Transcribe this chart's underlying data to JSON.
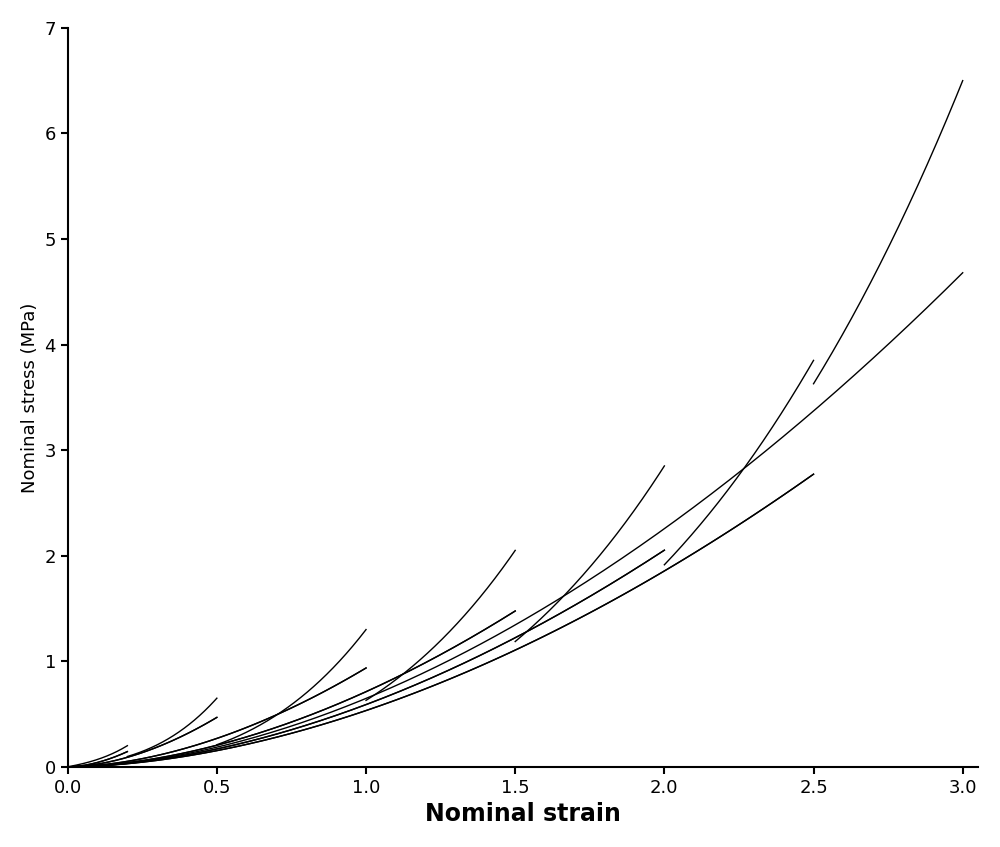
{
  "title": "",
  "xlabel": "Nominal strain",
  "ylabel": "Nominal stress (MPa)",
  "xlim": [
    0,
    3.05
  ],
  "ylim": [
    0,
    7
  ],
  "xticks": [
    0,
    0.5,
    1.0,
    1.5,
    2.0,
    2.5,
    3.0
  ],
  "yticks": [
    0,
    1,
    2,
    3,
    4,
    5,
    6,
    7
  ],
  "xlabel_fontsize": 17,
  "ylabel_fontsize": 13,
  "tick_fontsize": 13,
  "line_color": "#000000",
  "line_width": 1.0,
  "background_color": "#ffffff",
  "cycles": [
    {
      "max_strain": 0.2,
      "max_stress": 0.2
    },
    {
      "max_strain": 0.5,
      "max_stress": 0.65
    },
    {
      "max_strain": 1.0,
      "max_stress": 1.3
    },
    {
      "max_strain": 1.5,
      "max_stress": 2.05
    },
    {
      "max_strain": 2.0,
      "max_stress": 2.85
    },
    {
      "max_strain": 2.5,
      "max_stress": 3.85
    },
    {
      "max_strain": 3.0,
      "max_stress": 6.5
    }
  ],
  "virgin_params": [
    0.05,
    0.12,
    0.55
  ],
  "unload_power": 1.8,
  "unload_scale": 0.72
}
